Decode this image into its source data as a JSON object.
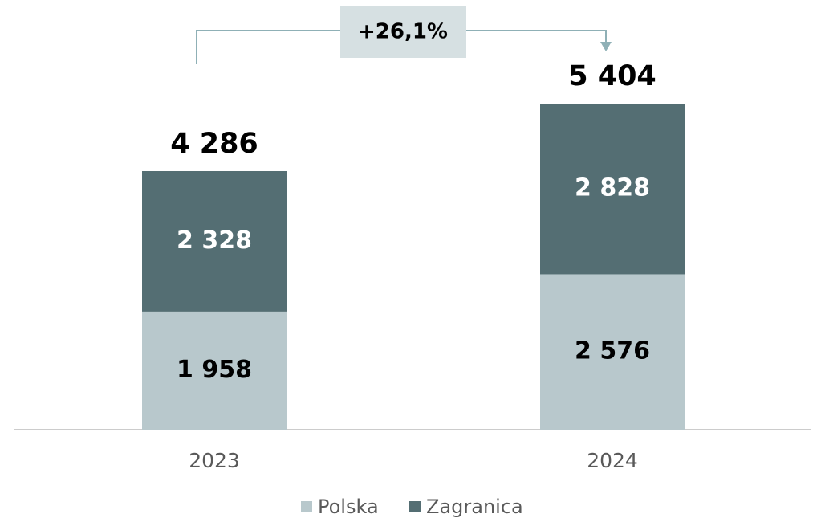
{
  "chart_data": {
    "type": "stacked-bar",
    "categories": [
      "2023",
      "2024"
    ],
    "series": [
      {
        "name": "Polska",
        "color": "#b8c8cc",
        "label_color": "#000000",
        "values": [
          1958,
          2576
        ],
        "value_labels": [
          "1 958",
          "2 576"
        ]
      },
      {
        "name": "Zagranica",
        "color": "#546e73",
        "label_color": "#ffffff",
        "values": [
          2328,
          2828
        ],
        "value_labels": [
          "2 328",
          "2 828"
        ]
      }
    ],
    "totals": {
      "values": [
        4286,
        5404
      ],
      "value_labels": [
        "4 286",
        "5 404"
      ]
    },
    "annotation": "+26,1%"
  }
}
